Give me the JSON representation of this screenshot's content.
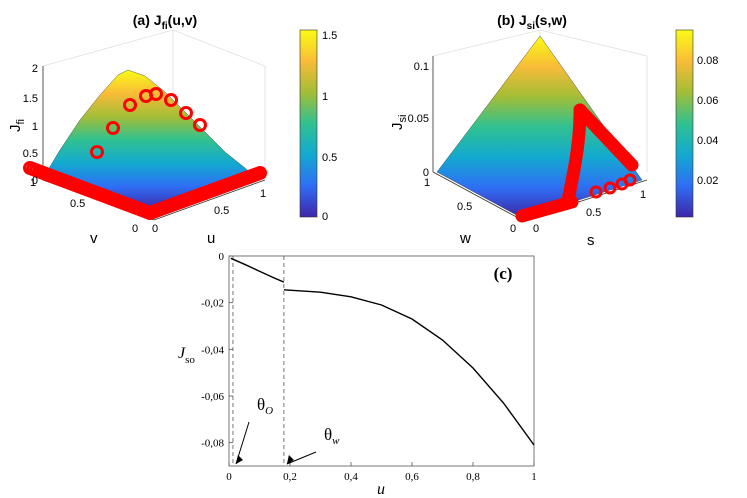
{
  "chart_data": [
    {
      "id": "a",
      "type": "surface3d",
      "title_prefix": "(a) J",
      "title_sub": "fi",
      "title_suffix": "(u,v)",
      "xlabel": "u",
      "ylabel": "v",
      "zlabel_main": "J",
      "zlabel_sub": "fi",
      "xlim": [
        0,
        1
      ],
      "ylim": [
        0,
        1
      ],
      "zlim": [
        0,
        2
      ],
      "xticks": [
        "0",
        "0.5",
        "1"
      ],
      "yticks": [
        "0",
        "0.5",
        "1"
      ],
      "zticks": [
        "0",
        "0.5",
        "1",
        "1.5",
        "2"
      ],
      "colorbar": {
        "min": 0,
        "max": 1.5,
        "ticks": [
          "0",
          "0.5",
          "1",
          "1.5"
        ]
      },
      "colormap": [
        "#3e26a8",
        "#2f6ef4",
        "#13a9d0",
        "#30c191",
        "#a3bd36",
        "#f9bc38",
        "#f9fb15"
      ],
      "marker_color": "#ff0000",
      "surface_peak": 1.5,
      "markers": "red circles along trajectory near boundary"
    },
    {
      "id": "b",
      "type": "surface3d",
      "title_prefix": "(b) J",
      "title_sub": "si",
      "title_suffix": "(s,w)",
      "xlabel": "s",
      "ylabel": "w",
      "zlabel_main": "J",
      "zlabel_sub": "si",
      "xlim": [
        0,
        1
      ],
      "ylim": [
        0,
        1
      ],
      "zlim": [
        0,
        0.1
      ],
      "xticks": [
        "0",
        "0.5",
        "1"
      ],
      "yticks": [
        "0",
        "0.5",
        "1"
      ],
      "zticks": [
        "0",
        "0.05",
        "0.1"
      ],
      "colorbar": {
        "min": 0,
        "max": 0.095,
        "ticks": [
          "0.02",
          "0.04",
          "0.06",
          "0.08"
        ]
      },
      "colormap": [
        "#3e26a8",
        "#2f6ef4",
        "#13a9d0",
        "#30c191",
        "#a3bd36",
        "#f9bc38",
        "#f9fb15"
      ],
      "marker_color": "#ff0000",
      "surface_peak": 0.095,
      "markers": "red circles along trajectory"
    },
    {
      "id": "c",
      "type": "line",
      "panel_label": "(c)",
      "xlabel": "u",
      "ylabel_main": "J",
      "ylabel_sub": "so",
      "xlim": [
        0,
        1
      ],
      "ylim": [
        -0.09,
        0
      ],
      "xticks": [
        0,
        0.2,
        0.4,
        0.6,
        0.8,
        1
      ],
      "xtick_labels": [
        "0",
        "0,2",
        "0,4",
        "0,6",
        "0,8",
        "1"
      ],
      "yticks": [
        0,
        -0.02,
        -0.04,
        -0.06,
        -0.08
      ],
      "ytick_labels": [
        "0",
        "-0,02",
        "-0,04",
        "-0,06",
        "-0,08"
      ],
      "series": [
        {
          "name": "segment1",
          "x": [
            0.006,
            0.05,
            0.1,
            0.15,
            0.18
          ],
          "y": [
            -0.001,
            -0.0035,
            -0.0065,
            -0.0095,
            -0.0112
          ]
        },
        {
          "name": "segment2",
          "x": [
            0.18,
            0.3,
            0.4,
            0.5,
            0.6,
            0.7,
            0.8,
            0.9,
            1.0
          ],
          "y": [
            -0.0145,
            -0.0155,
            -0.0175,
            -0.021,
            -0.027,
            -0.036,
            -0.048,
            -0.063,
            -0.081
          ]
        }
      ],
      "thresholds": [
        {
          "x": 0.013,
          "label_main": "θ",
          "label_sub": "O"
        },
        {
          "x": 0.18,
          "label_main": "θ",
          "label_sub": "w"
        }
      ]
    }
  ]
}
